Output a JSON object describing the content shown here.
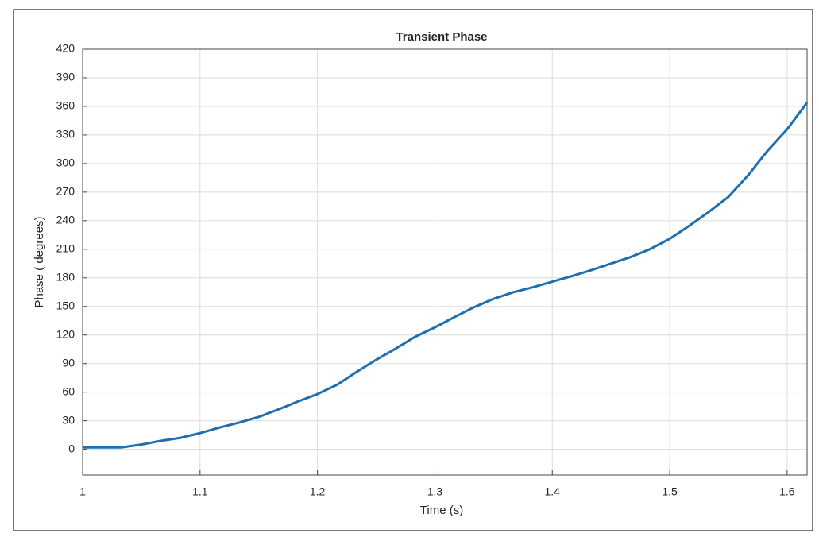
{
  "chart_data": {
    "type": "line",
    "title": "Transient Phase",
    "xlabel": "Time (s)",
    "ylabel": "Phase ( degrees)",
    "x": [
      1,
      1.033,
      1.05,
      1.067,
      1.083,
      1.1,
      1.117,
      1.133,
      1.15,
      1.167,
      1.183,
      1.2,
      1.217,
      1.233,
      1.25,
      1.267,
      1.283,
      1.3,
      1.317,
      1.333,
      1.35,
      1.367,
      1.383,
      1.4,
      1.417,
      1.433,
      1.45,
      1.467,
      1.483,
      1.5,
      1.517,
      1.533,
      1.55,
      1.567,
      1.583,
      1.6,
      1.617
    ],
    "values": [
      2,
      2,
      5,
      9,
      12,
      17,
      23,
      28,
      34,
      42,
      50,
      58,
      68,
      81,
      94,
      106,
      118,
      128,
      139,
      149,
      158,
      165,
      170,
      176,
      182,
      188,
      195,
      202,
      210,
      221,
      235,
      249,
      265,
      288,
      313,
      336,
      364
    ],
    "color": "#1f6fae",
    "xlim": [
      1,
      1.617
    ],
    "xticks": [
      1,
      1.1,
      1.2,
      1.3,
      1.4,
      1.5,
      1.6
    ],
    "ylim": [
      -27,
      420
    ],
    "yticks": [
      0,
      30,
      60,
      90,
      120,
      150,
      180,
      210,
      240,
      270,
      300,
      330,
      360,
      390,
      420
    ],
    "grid": true
  }
}
